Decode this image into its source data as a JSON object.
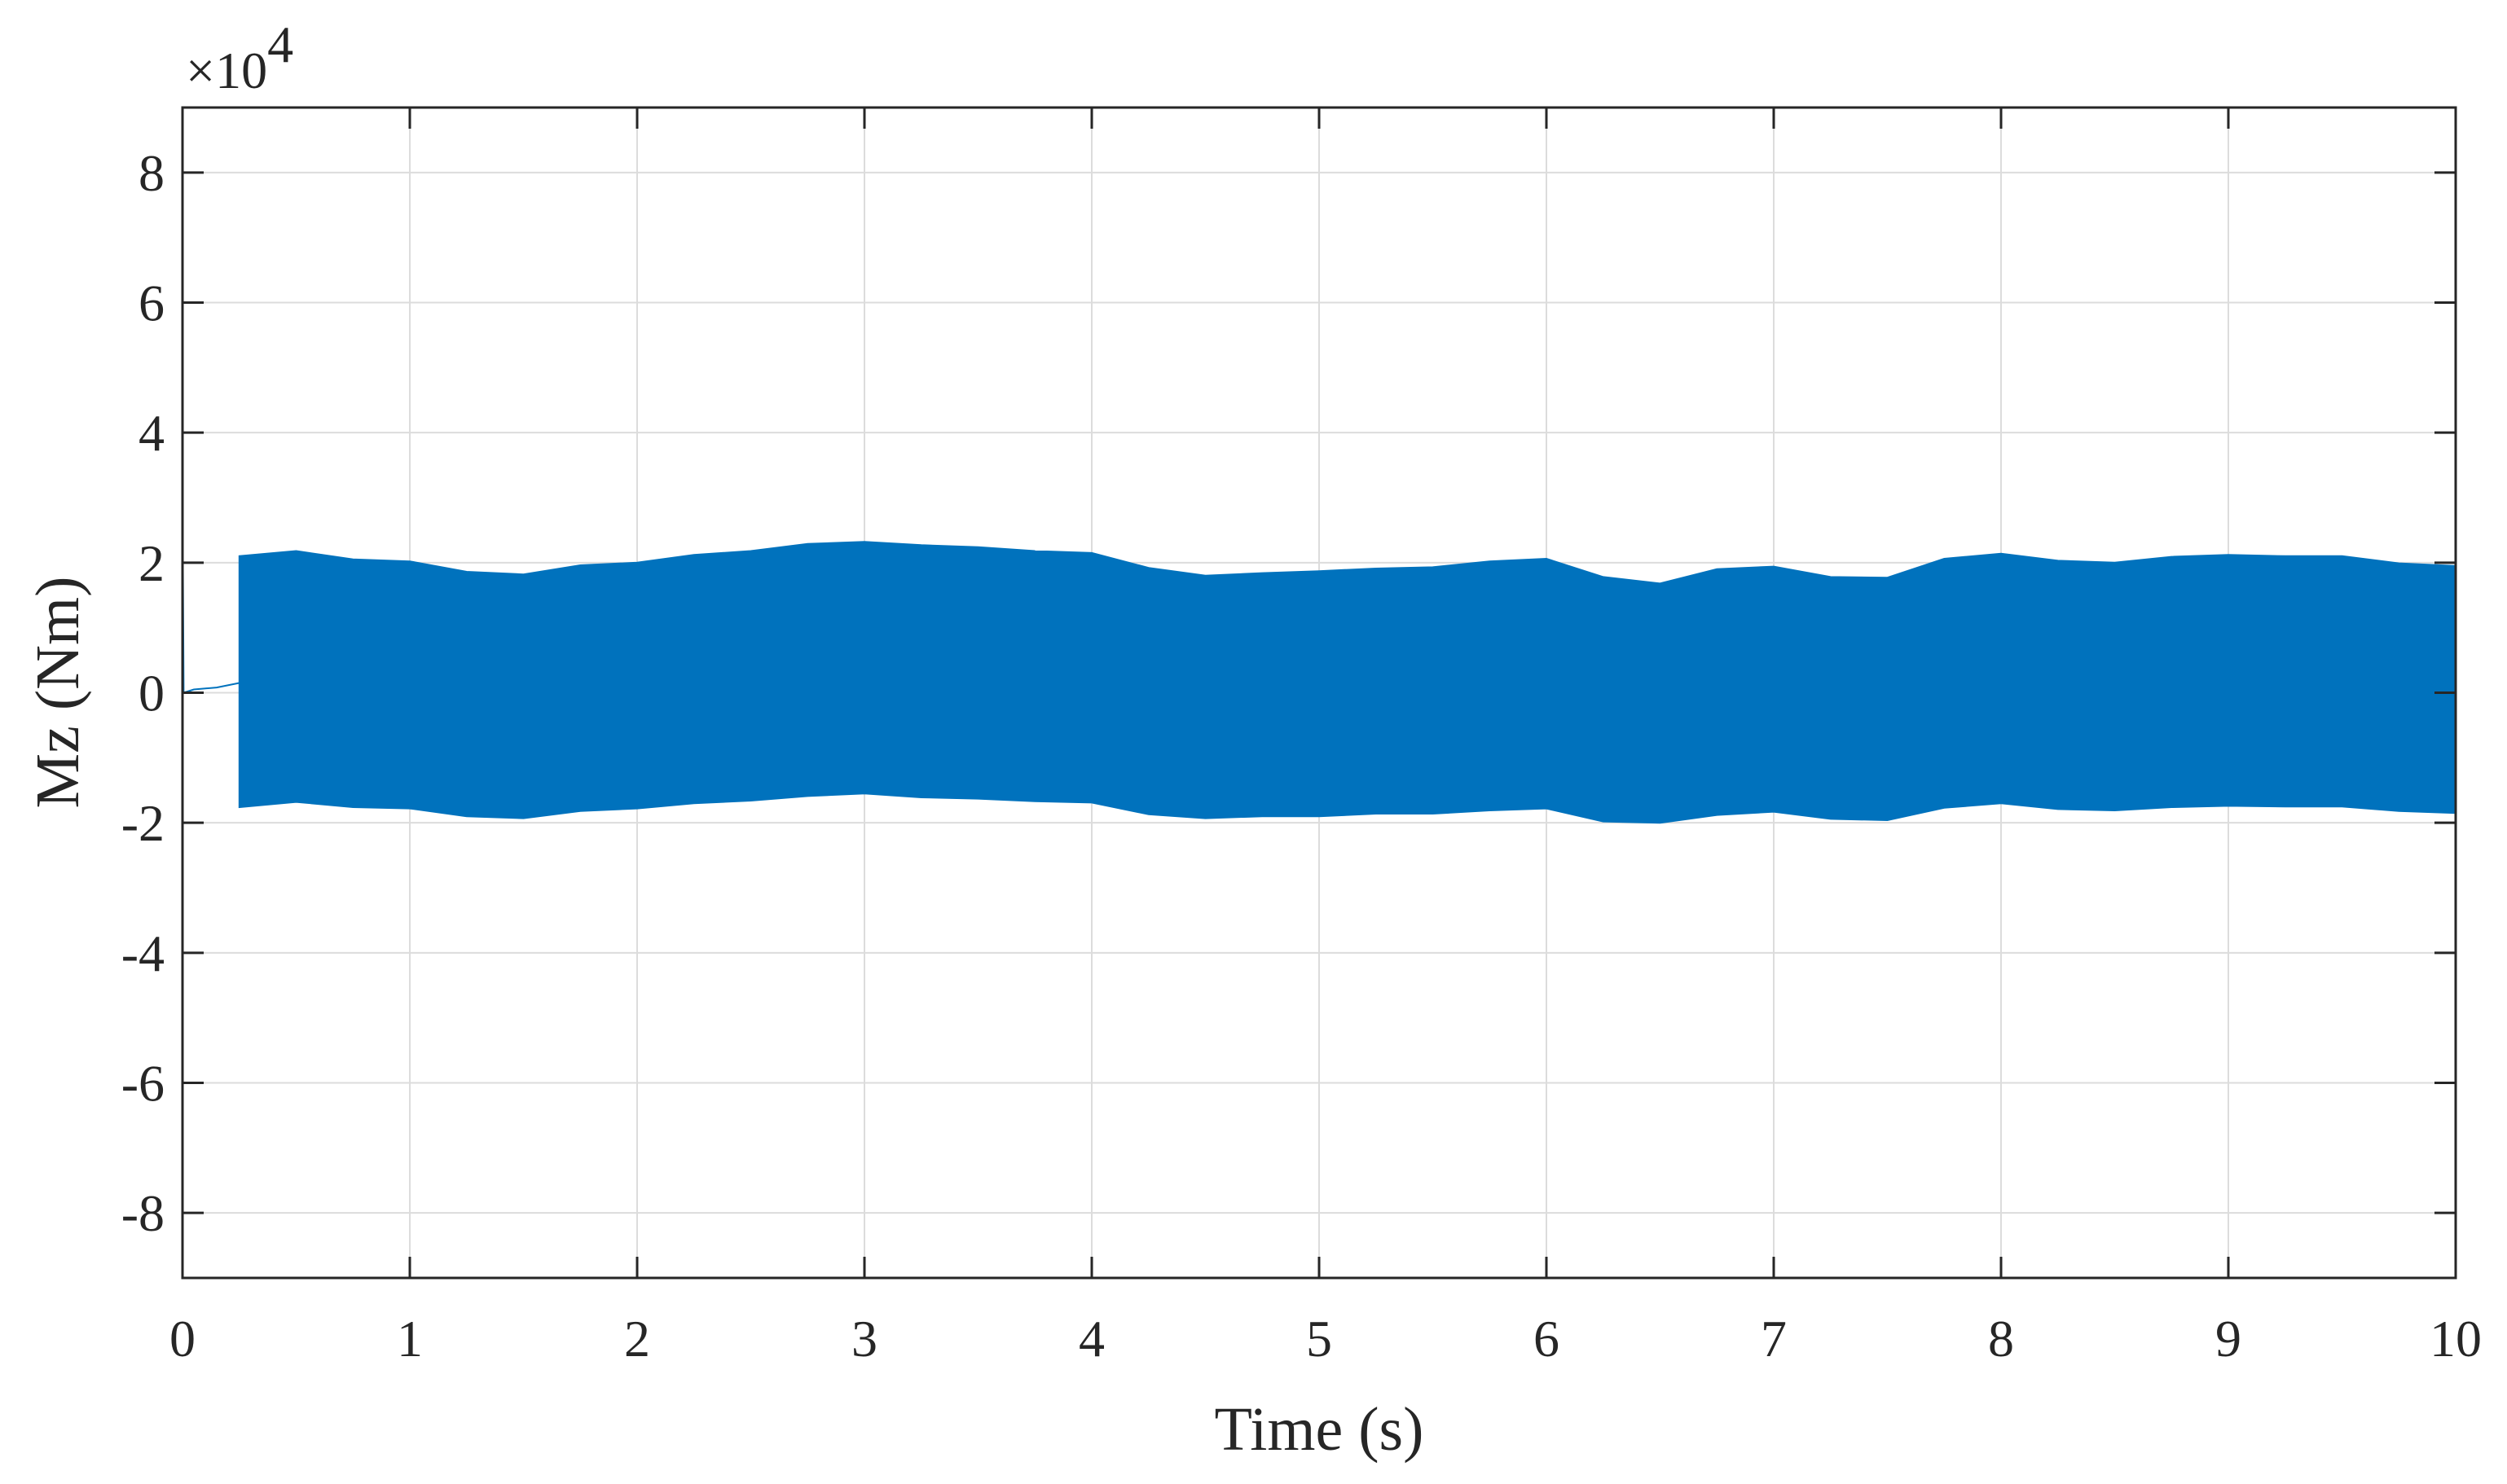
{
  "chart_data": {
    "type": "area",
    "xlabel": "Time (s)",
    "ylabel": "Mz (Nm)",
    "y_multiplier_label": "×10",
    "y_multiplier_exponent": "4",
    "xlim": [
      0,
      10
    ],
    "ylim": [
      -90000,
      90000
    ],
    "x_ticks": [
      0,
      1,
      2,
      3,
      4,
      5,
      6,
      7,
      8,
      9,
      10
    ],
    "x_tick_labels": [
      "0",
      "1",
      "2",
      "3",
      "4",
      "5",
      "6",
      "7",
      "8",
      "9",
      "10"
    ],
    "y_ticks": [
      -80000,
      -60000,
      -40000,
      -20000,
      0,
      20000,
      40000,
      60000,
      80000
    ],
    "y_tick_labels": [
      "-8",
      "-6",
      "-4",
      "-2",
      "0",
      "2",
      "4",
      "6",
      "8"
    ],
    "grid": true,
    "series_color": "#0072BD",
    "series": [
      {
        "kind": "oscillation_envelope",
        "x": [
          0.25,
          0.5,
          0.75,
          1.0,
          1.25,
          1.5,
          1.75,
          2.0,
          2.25,
          2.5,
          2.75,
          3.0,
          3.25,
          3.5,
          3.75,
          4.0,
          4.25,
          4.5,
          4.75,
          5.0,
          5.25,
          5.5,
          5.75,
          6.0,
          6.25,
          6.5,
          6.75,
          7.0,
          7.25,
          7.5,
          7.75,
          8.0,
          8.25,
          8.5,
          8.75,
          9.0,
          9.25,
          9.5,
          9.75,
          10.0
        ],
        "upper": [
          21000,
          21800,
          20500,
          20200,
          18600,
          18200,
          19600,
          20000,
          21200,
          21800,
          22900,
          23200,
          22700,
          22400,
          21800,
          21500,
          19200,
          18000,
          18400,
          18700,
          19100,
          19300,
          20200,
          20600,
          17800,
          16800,
          19000,
          19400,
          17800,
          17700,
          20600,
          21400,
          20300,
          20000,
          20900,
          21200,
          21000,
          21000,
          19900,
          19500
        ],
        "lower": [
          -17600,
          -16800,
          -17600,
          -17800,
          -19000,
          -19300,
          -18200,
          -17800,
          -17000,
          -16600,
          -15900,
          -15500,
          -16100,
          -16300,
          -16700,
          -16900,
          -18700,
          -19300,
          -19000,
          -19000,
          -18600,
          -18600,
          -18100,
          -17800,
          -19800,
          -20000,
          -18800,
          -18300,
          -19400,
          -19600,
          -17700,
          -17000,
          -17900,
          -18100,
          -17600,
          -17400,
          -17500,
          -17500,
          -18200,
          -18500
        ]
      },
      {
        "kind": "initial_transient",
        "x": [
          0.0,
          0.0,
          0.0,
          0.005,
          0.05,
          0.15,
          0.25
        ],
        "y": [
          90000,
          0,
          30000,
          0,
          500,
          800,
          1500
        ]
      }
    ]
  }
}
